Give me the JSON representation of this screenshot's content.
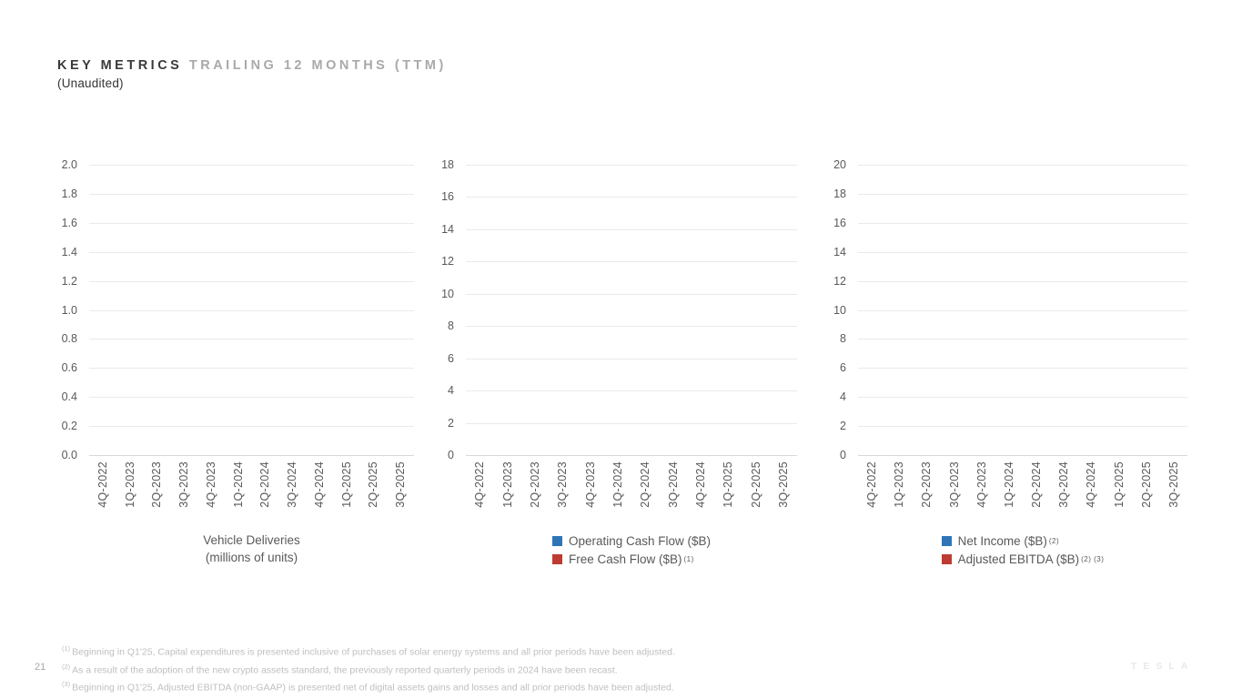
{
  "page": {
    "title_primary": "KEY METRICS",
    "title_secondary": " TRAILING 12 MONTHS (TTM)",
    "subtitle": "(Unaudited)",
    "page_number": "21",
    "brand_wordmark": "TESLA"
  },
  "colors": {
    "series_blue": "#2E75B6",
    "series_red": "#BE3B31",
    "gridline": "#EAEAEA",
    "axis_line": "#D9D9D9",
    "tick_text": "#595959",
    "footnote_text": "#BFBFBF"
  },
  "chart_data": [
    {
      "id": "vehicle-deliveries",
      "type": "bar",
      "title": [
        "Vehicle Deliveries",
        "(millions of units)"
      ],
      "categories": [
        "4Q-2022",
        "1Q-2023",
        "2Q-2023",
        "3Q-2023",
        "4Q-2023",
        "1Q-2024",
        "2Q-2024",
        "3Q-2024",
        "4Q-2024",
        "1Q-2025",
        "2Q-2025",
        "3Q-2025"
      ],
      "series": [],
      "plotted_values": "none - axes and gridlines shown with no data bars rendered",
      "ylim": [
        0.0,
        2.0
      ],
      "ytick_step": 0.2,
      "yticks": [
        "2.0",
        "1.8",
        "1.6",
        "1.4",
        "1.2",
        "1.0",
        "0.8",
        "0.6",
        "0.4",
        "0.2",
        "0.0"
      ],
      "grid": true,
      "legend_position": "bottom"
    },
    {
      "id": "cash-flow",
      "type": "bar",
      "title": [],
      "categories": [
        "4Q-2022",
        "1Q-2023",
        "2Q-2023",
        "3Q-2023",
        "4Q-2023",
        "1Q-2024",
        "2Q-2024",
        "3Q-2024",
        "4Q-2024",
        "1Q-2025",
        "2Q-2025",
        "3Q-2025"
      ],
      "series": [
        {
          "name": "Operating Cash Flow ($B)",
          "sup": "",
          "color_key": "series_blue",
          "values": []
        },
        {
          "name": "Free Cash Flow ($B)",
          "sup": "(1)",
          "color_key": "series_red",
          "values": []
        }
      ],
      "plotted_values": "none - axes and gridlines shown with no data bars rendered",
      "ylim": [
        0,
        18
      ],
      "ytick_step": 2,
      "yticks": [
        "18",
        "16",
        "14",
        "12",
        "10",
        "8",
        "6",
        "4",
        "2",
        "0"
      ],
      "grid": true,
      "legend_position": "bottom"
    },
    {
      "id": "income-ebitda",
      "type": "bar",
      "title": [],
      "categories": [
        "4Q-2022",
        "1Q-2023",
        "2Q-2023",
        "3Q-2023",
        "4Q-2023",
        "1Q-2024",
        "2Q-2024",
        "3Q-2024",
        "4Q-2024",
        "1Q-2025",
        "2Q-2025",
        "3Q-2025"
      ],
      "series": [
        {
          "name": "Net Income ($B)",
          "sup": "(2)",
          "color_key": "series_blue",
          "values": []
        },
        {
          "name": "Adjusted EBITDA ($B)",
          "sup": "(2) (3)",
          "color_key": "series_red",
          "values": []
        }
      ],
      "plotted_values": "none - axes and gridlines shown with no data bars rendered",
      "ylim": [
        0,
        20
      ],
      "ytick_step": 2,
      "yticks": [
        "20",
        "18",
        "16",
        "14",
        "12",
        "10",
        "8",
        "6",
        "4",
        "2",
        "0"
      ],
      "grid": true,
      "legend_position": "bottom"
    }
  ],
  "footnotes": [
    {
      "sup": "(1)",
      "text": "Beginning in Q1'25, Capital expenditures is presented inclusive of purchases of solar energy systems and all prior periods have been adjusted."
    },
    {
      "sup": "(2)",
      "text": "As a result of the adoption of the new crypto assets standard, the previously reported quarterly periods in 2024 have been recast."
    },
    {
      "sup": "(3)",
      "text": "Beginning in Q1'25, Adjusted EBITDA (non-GAAP) is presented net of digital assets gains and losses and all prior periods have been adjusted."
    }
  ]
}
